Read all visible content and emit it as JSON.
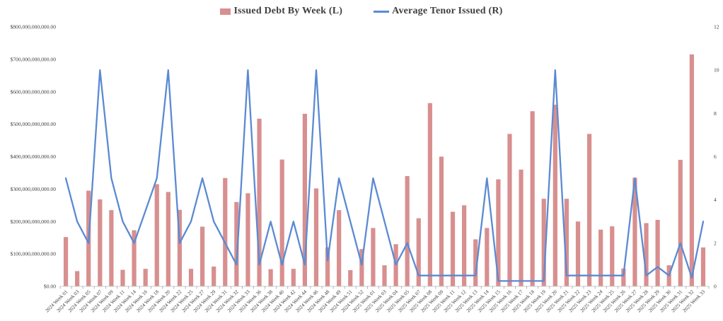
{
  "legend": {
    "bar_label": "Issued Debt By Week (L)",
    "line_label": "Average Tenor Issued (R)"
  },
  "colors": {
    "bar": "#d88f8f",
    "line": "#5b8ad2",
    "axis_text": "#404040",
    "legend_text": "#3f3f3f",
    "axis_line": "#c8c8c8",
    "tick_mark": "#a0a0a0"
  },
  "chart_data": {
    "type": "bar",
    "subtype": "combo-bar-line",
    "title": "",
    "xlabel": "",
    "ylabel_left": "Issued Debt By Week",
    "ylabel_right": "Average Tenor Issued",
    "grid": false,
    "legend_position": "top",
    "left_axis": {
      "min": 0,
      "max": 800000000000,
      "step": 100000000000,
      "tick_labels": [
        "$800,000,000,000.00",
        "$700,000,000,000.00",
        "$600,000,000,000.00",
        "$500,000,000,000.00",
        "$400,000,000,000.00",
        "$300,000,000,000.00",
        "$200,000,000,000.00",
        "$100,000,000,000.00",
        "$0.00"
      ]
    },
    "right_axis": {
      "min": 0,
      "max": 12,
      "step": 2,
      "tick_labels": [
        "12",
        "10",
        "8",
        "6",
        "4",
        "2",
        "0"
      ]
    },
    "categories": [
      "2024 Week 01",
      "2024 Week 03",
      "2024 Week 05",
      "2024 Week 07",
      "2024 Week 09",
      "2024 Week 11",
      "2024 Week 14",
      "2024 Week 16",
      "2024 Week 18",
      "2024 Week 20",
      "2024 Week 22",
      "2024 Week 25",
      "2024 Week 27",
      "2024 Week 29",
      "2024 Week 31",
      "2024 Week 32",
      "2024 Week 33",
      "2024 Week 36",
      "2024 Week 38",
      "2024 Week 40",
      "2024 Week 42",
      "2024 Week 44",
      "2024 Week 46",
      "2024 Week 48",
      "2024 Week 49",
      "2024 Week 51",
      "2024 Week 52",
      "2025 Week 01",
      "2025 Week 03",
      "2025 Week 04",
      "2025 Week 05",
      "2025 Week 07",
      "2025 Week 08",
      "2025 Week 09",
      "2025 Week 11",
      "2025 Week 12",
      "2025 Week 13",
      "2025 Week 14",
      "2025 Week 15",
      "2025 Week 16",
      "2025 Week 17",
      "2025 Week 18",
      "2025 Week 19",
      "2025 Week 20",
      "2025 Week 21",
      "2025 Week 22",
      "2025 Week 23",
      "2025 Week 24",
      "2025 Week 25",
      "2025 Week 26",
      "2025 Week 27",
      "2025 Week 28",
      "2025 Week 29",
      "2025 Week 30",
      "2025 Week 31",
      "2025 Week 32",
      "2025 Week 33"
    ],
    "series": [
      {
        "name": "Issued Debt By Week (L)",
        "type": "bar",
        "axis": "left",
        "unit": "USD billions",
        "values": [
          152,
          47,
          295,
          268,
          235,
          51,
          173,
          54,
          315,
          291,
          236,
          54,
          184,
          61,
          334,
          260,
          287,
          517,
          53,
          391,
          54,
          532,
          302,
          120,
          235,
          50,
          115,
          180,
          65,
          130,
          340,
          210,
          565,
          400,
          230,
          250,
          145,
          180,
          330,
          470,
          360,
          540,
          270,
          560,
          270,
          200,
          470,
          175,
          185,
          55,
          335,
          195,
          205,
          65,
          390,
          715,
          120
        ]
      },
      {
        "name": "Average Tenor Issued (R)",
        "type": "line",
        "axis": "right",
        "unit": "years",
        "values": [
          5,
          3,
          2,
          10,
          5,
          3,
          2,
          3.5,
          5,
          10,
          2,
          3,
          5,
          3,
          2,
          1,
          10,
          1,
          3,
          1,
          3,
          1,
          10,
          1.2,
          5,
          3,
          1,
          5,
          3,
          1,
          2,
          0.5,
          0.5,
          0.5,
          0.5,
          0.5,
          0.5,
          5,
          0.25,
          0.25,
          0.25,
          0.25,
          0.25,
          10,
          0.5,
          0.5,
          0.5,
          0.5,
          0.5,
          0.5,
          5,
          0.5,
          0.9,
          0.5,
          2,
          0.4,
          3
        ]
      }
    ]
  }
}
